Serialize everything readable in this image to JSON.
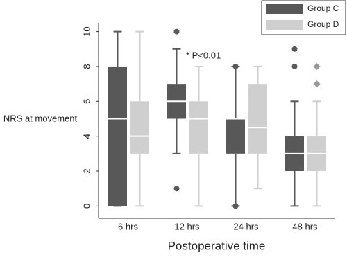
{
  "chart_data": {
    "type": "box",
    "x_label": "Postoperative time",
    "y_label": "NRS at movement",
    "categories": [
      "6 hrs",
      "12 hrs",
      "24 hrs",
      "48 hrs"
    ],
    "ylim": [
      -0.7,
      10.5
    ],
    "yticks": [
      0,
      2,
      4,
      6,
      8,
      10
    ],
    "annotation": "* P<0.01",
    "legend": "top-right",
    "series": [
      {
        "name": "Group C",
        "color": "#585858",
        "marker": "circle",
        "whisker_low": [
          0,
          3,
          0,
          0
        ],
        "q1": [
          0,
          5,
          3,
          2
        ],
        "median": [
          5,
          6,
          5,
          3
        ],
        "q3": [
          8,
          7,
          5,
          4
        ],
        "whisker_high": [
          10,
          9,
          8,
          6
        ],
        "outliers": [
          [],
          [
            10,
            1
          ],
          [
            8,
            0
          ],
          [
            9,
            8
          ]
        ]
      },
      {
        "name": "Group D",
        "color": "#cfcfcf",
        "marker": "diamond",
        "whisker_low": [
          0,
          0,
          1,
          0
        ],
        "q1": [
          3,
          3,
          3,
          2
        ],
        "median": [
          4,
          5,
          4.5,
          3
        ],
        "q3": [
          6,
          6,
          7,
          4
        ],
        "whisker_high": [
          10,
          8,
          8,
          6
        ],
        "outliers": [
          [],
          [],
          [],
          [
            8,
            7
          ]
        ]
      }
    ]
  }
}
